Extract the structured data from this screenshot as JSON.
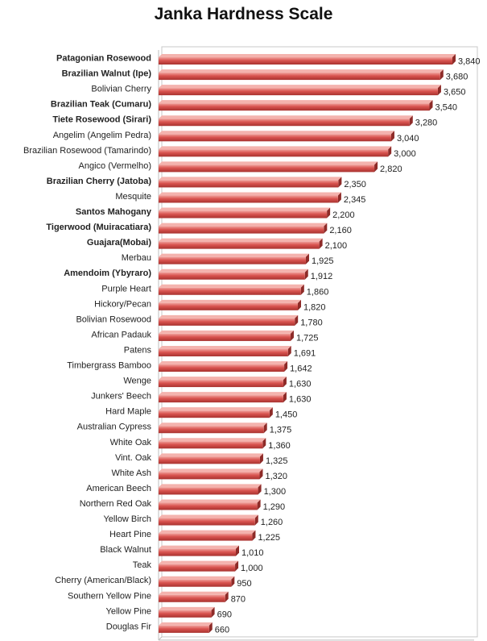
{
  "chart_data": {
    "type": "bar",
    "orientation": "horizontal",
    "title": "Janka Hardness Scale",
    "xlabel": "",
    "ylabel": "",
    "xlim": [
      0,
      4000
    ],
    "grid": false,
    "legend": "none",
    "bar_color": "#d9534f",
    "categories": [
      "Patagonian Rosewood",
      "Brazilian Walnut (Ipe)",
      "Bolivian Cherry",
      "Brazilian Teak (Cumaru)",
      "Tiete Rosewood (Sirari)",
      "Angelim (Angelim Pedra)",
      "Brazilian Rosewood (Tamarindo)",
      "Angico (Vermelho)",
      "Brazilian Cherry (Jatoba)",
      "Mesquite",
      "Santos Mahogany",
      "Tigerwood (Muiracatiara)",
      "Guajara(Mobai)",
      "Merbau",
      "Amendoim (Ybyraro)",
      "Purple Heart",
      "Hickory/Pecan",
      "Bolivian Rosewood",
      "African Padauk",
      "Patens",
      "Timbergrass Bamboo",
      "Wenge",
      "Junkers' Beech",
      "Hard Maple",
      "Australian Cypress",
      "White Oak",
      "Vint. Oak",
      "White Ash",
      "American Beech",
      "Northern Red Oak",
      "Yellow Birch",
      "Heart Pine",
      "Black Walnut",
      "Teak",
      "Cherry (American/Black)",
      "Southern Yellow Pine",
      "Yellow Pine",
      "Douglas Fir"
    ],
    "values": [
      3840,
      3680,
      3650,
      3540,
      3280,
      3040,
      3000,
      2820,
      2350,
      2345,
      2200,
      2160,
      2100,
      1925,
      1912,
      1860,
      1820,
      1780,
      1725,
      1691,
      1642,
      1630,
      1630,
      1450,
      1375,
      1360,
      1325,
      1320,
      1300,
      1290,
      1260,
      1225,
      1010,
      1000,
      950,
      870,
      690,
      660
    ],
    "value_labels": [
      "3,840",
      "3,680",
      "3,650",
      "3,540",
      "3,280",
      "3,040",
      "3,000",
      "2,820",
      "2,350",
      "2,345",
      "2,200",
      "2,160",
      "2,100",
      "1,925",
      "1,912",
      "1,860",
      "1,820",
      "1,780",
      "1,725",
      "1,691",
      "1,642",
      "1,630",
      "1,630",
      "1,450",
      "1,375",
      "1,360",
      "1,325",
      "1,320",
      "1,300",
      "1,290",
      "1,260",
      "1,225",
      "1,010",
      "1,000",
      "950",
      "870",
      "690",
      "660"
    ],
    "bold_categories": [
      true,
      true,
      false,
      true,
      true,
      false,
      false,
      false,
      true,
      false,
      true,
      true,
      true,
      false,
      true,
      false,
      false,
      false,
      false,
      false,
      false,
      false,
      false,
      false,
      false,
      false,
      false,
      false,
      false,
      false,
      false,
      false,
      false,
      false,
      false,
      false,
      false,
      false
    ]
  }
}
